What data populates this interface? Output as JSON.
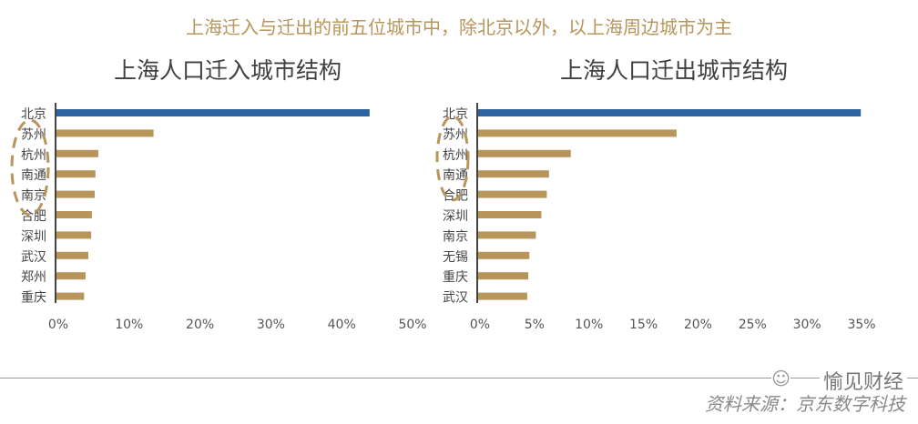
{
  "headline": "上海迁入与迁出的前五位城市中，除北京以外，以上海周边城市为主",
  "watermark": "愉见财经",
  "watermark_icon": "wechat-icon",
  "source": "资料来源：京东数字科技",
  "colors": {
    "highlight": "#2e62a0",
    "bar": "#b8955a",
    "headline": "#b8955a",
    "circle": "#b8955a"
  },
  "chart_data": [
    {
      "type": "bar",
      "orientation": "horizontal",
      "title": "上海人口迁入城市结构",
      "categories": [
        "北京",
        "苏州",
        "杭州",
        "南通",
        "南京",
        "合肥",
        "深圳",
        "武汉",
        "郑州",
        "重庆"
      ],
      "values": [
        44.2,
        13.7,
        5.9,
        5.5,
        5.4,
        5.0,
        4.9,
        4.5,
        4.1,
        3.9
      ],
      "unit": "%",
      "xlim": [
        0,
        50
      ],
      "xticks": [
        "0%",
        "10%",
        "20%",
        "30%",
        "40%",
        "50%"
      ],
      "highlight_category": "北京",
      "annotation": "dashed ellipse around 苏州–南京",
      "grid": false
    },
    {
      "type": "bar",
      "orientation": "horizontal",
      "title": "上海人口迁出城市结构",
      "categories": [
        "北京",
        "苏州",
        "杭州",
        "南通",
        "合肥",
        "深圳",
        "南京",
        "无锡",
        "重庆",
        "武汉"
      ],
      "values": [
        35.1,
        18.2,
        8.5,
        6.5,
        6.3,
        5.8,
        5.3,
        4.7,
        4.6,
        4.5
      ],
      "unit": "%",
      "xlim": [
        0,
        35
      ],
      "xticks": [
        "0%",
        "5%",
        "10%",
        "15%",
        "20%",
        "25%",
        "30%",
        "35%"
      ],
      "highlight_category": "北京",
      "annotation": "dashed ellipse around 苏州–合肥",
      "grid": false
    }
  ]
}
